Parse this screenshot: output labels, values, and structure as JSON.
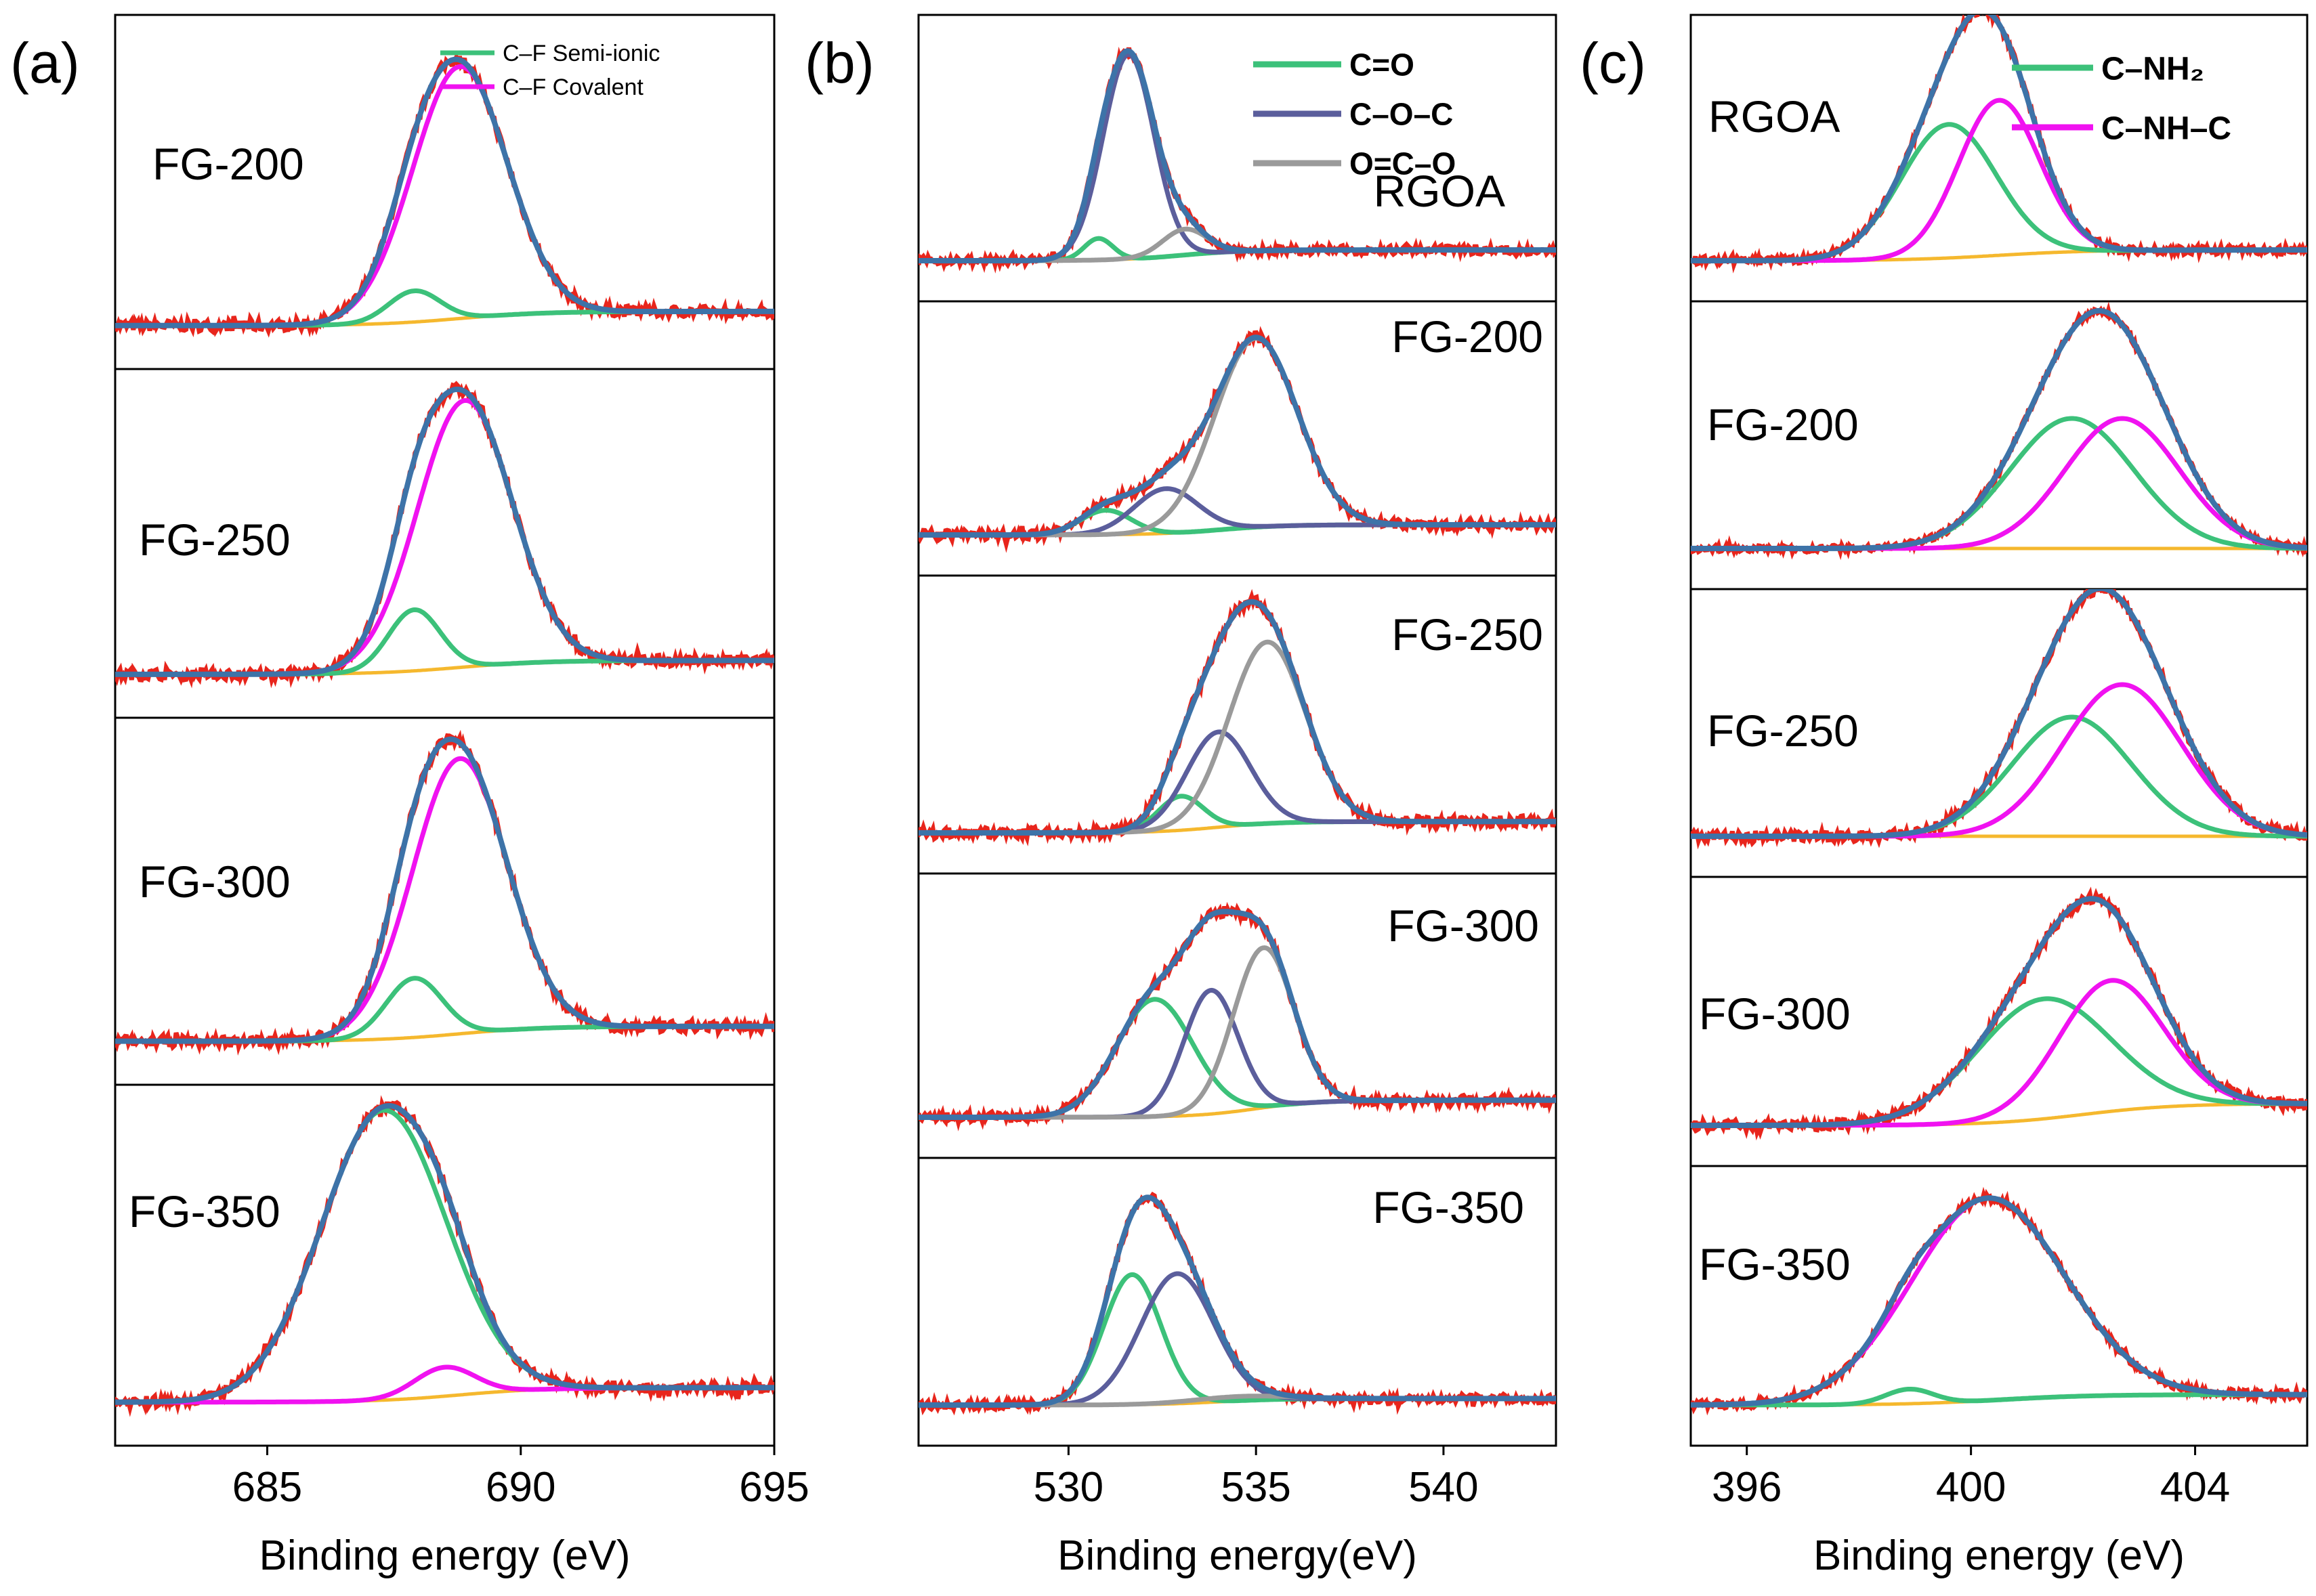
{
  "colors": {
    "raw": "#e8251c",
    "envelope": "#3d73a8",
    "background": "#f5b82e",
    "green": "#3cc17a",
    "magenta": "#f012f0",
    "slate": "#5b5e9c",
    "gray": "#9a9a9a",
    "axis": "#000000"
  },
  "chart_data": [
    {
      "type": "line",
      "panel_label": "(a)",
      "xlabel": "Binding energy (eV)",
      "xlim": [
        682,
        695
      ],
      "x_ticks": [
        685,
        690,
        695
      ],
      "tick_labels": [
        "685",
        "690",
        "695"
      ],
      "legend": [
        {
          "label": "C–F Semi-ionic",
          "color": "green"
        },
        {
          "label": "C–F Covalent",
          "color": "magenta"
        }
      ],
      "legend_placement": "top-right",
      "spectra": [
        {
          "label": "FG-200",
          "peak_height": 1.0,
          "raw_noise": 0.02,
          "background": {
            "left": 0.01,
            "right": 0.06,
            "center": 688.8
          },
          "components": [
            {
              "name": "C–F Semi-ionic",
              "color": "green",
              "center": 687.9,
              "fwhm": 1.2,
              "height": 0.11
            },
            {
              "name": "C–F Covalent",
              "color": "magenta",
              "center": 688.8,
              "fwhm": 2.2,
              "height": 0.89
            }
          ]
        },
        {
          "label": "FG-250",
          "peak_height": 1.0,
          "raw_noise": 0.02,
          "background": {
            "left": 0.01,
            "right": 0.06,
            "center": 688.8
          },
          "components": [
            {
              "name": "C–F Semi-ionic",
              "color": "green",
              "center": 687.9,
              "fwhm": 1.2,
              "height": 0.22
            },
            {
              "name": "C–F Covalent",
              "color": "magenta",
              "center": 688.9,
              "fwhm": 2.2,
              "height": 0.96
            }
          ]
        },
        {
          "label": "FG-300",
          "peak_height": 1.0,
          "raw_noise": 0.02,
          "background": {
            "left": 0.01,
            "right": 0.06,
            "center": 688.8
          },
          "components": [
            {
              "name": "C–F Semi-ionic",
              "color": "green",
              "center": 687.9,
              "fwhm": 1.3,
              "height": 0.2
            },
            {
              "name": "C–F Covalent",
              "color": "magenta",
              "center": 688.8,
              "fwhm": 2.2,
              "height": 0.93
            }
          ]
        },
        {
          "label": "FG-350",
          "peak_height": 1.0,
          "raw_noise": 0.02,
          "background": {
            "left": 0.01,
            "right": 0.06,
            "center": 688.8
          },
          "components": [
            {
              "name": "C–F Semi-ionic",
              "color": "green",
              "center": 687.3,
              "fwhm": 2.9,
              "height": 1.0
            },
            {
              "name": "C–F Covalent",
              "color": "magenta",
              "center": 688.5,
              "fwhm": 1.4,
              "height": 0.1
            }
          ]
        }
      ]
    },
    {
      "type": "line",
      "panel_label": "(b)",
      "xlabel": "Binding energy(eV)",
      "xlim": [
        526,
        543
      ],
      "x_ticks": [
        530,
        535,
        540
      ],
      "tick_labels": [
        "530",
        "535",
        "540"
      ],
      "legend": [
        {
          "label": "C=O",
          "color": "green"
        },
        {
          "label": "C–O–C",
          "color": "slate"
        },
        {
          "label": "O=C–O",
          "color": "gray"
        }
      ],
      "legend_placement": "top-right",
      "spectra": [
        {
          "label": "RGOA",
          "peak_height": 1.0,
          "raw_noise": 0.02,
          "background": {
            "left": 0.0,
            "right": 0.05,
            "center": 533
          },
          "components": [
            {
              "name": "C=O",
              "color": "green",
              "center": 530.8,
              "fwhm": 0.9,
              "height": 0.1
            },
            {
              "name": "C–O–C",
              "color": "slate",
              "center": 531.6,
              "fwhm": 1.6,
              "height": 0.95
            },
            {
              "name": "O=C–O",
              "color": "gray",
              "center": 533.1,
              "fwhm": 1.4,
              "height": 0.12
            }
          ]
        },
        {
          "label": "FG-200",
          "peak_height": 1.0,
          "raw_noise": 0.025,
          "background": {
            "left": 0.0,
            "right": 0.05,
            "center": 534
          },
          "components": [
            {
              "name": "C=O",
              "color": "green",
              "center": 531.0,
              "fwhm": 1.6,
              "height": 0.12
            },
            {
              "name": "C–O–C",
              "color": "slate",
              "center": 532.6,
              "fwhm": 2.0,
              "height": 0.22
            },
            {
              "name": "O=C–O",
              "color": "gray",
              "center": 535.0,
              "fwhm": 2.6,
              "height": 0.93
            }
          ]
        },
        {
          "label": "FG-250",
          "peak_height": 1.0,
          "raw_noise": 0.025,
          "background": {
            "left": 0.0,
            "right": 0.05,
            "center": 534
          },
          "components": [
            {
              "name": "C=O",
              "color": "green",
              "center": 533.0,
              "fwhm": 1.4,
              "height": 0.15
            },
            {
              "name": "C–O–C",
              "color": "slate",
              "center": 534.0,
              "fwhm": 2.0,
              "height": 0.42
            },
            {
              "name": "O=C–O",
              "color": "gray",
              "center": 535.3,
              "fwhm": 2.4,
              "height": 0.8
            }
          ]
        },
        {
          "label": "FG-300",
          "peak_height": 1.0,
          "raw_noise": 0.025,
          "background": {
            "left": 0.0,
            "right": 0.08,
            "center": 535
          },
          "components": [
            {
              "name": "C=O",
              "color": "green",
              "center": 532.3,
              "fwhm": 2.4,
              "height": 0.55
            },
            {
              "name": "C–O–C",
              "color": "slate",
              "center": 533.8,
              "fwhm": 1.7,
              "height": 0.58
            },
            {
              "name": "O=C–O",
              "color": "gray",
              "center": 535.2,
              "fwhm": 1.9,
              "height": 0.75
            }
          ]
        },
        {
          "label": "FG-350",
          "peak_height": 1.0,
          "raw_noise": 0.02,
          "background": {
            "left": 0.0,
            "right": 0.03,
            "center": 534
          },
          "components": [
            {
              "name": "C=O",
              "color": "green",
              "center": 531.7,
              "fwhm": 1.8,
              "height": 0.6
            },
            {
              "name": "C–O–C",
              "color": "slate",
              "center": 532.9,
              "fwhm": 2.3,
              "height": 0.6
            },
            {
              "name": "O=C–O",
              "color": "gray",
              "center": 534.5,
              "fwhm": 3.0,
              "height": 0.02
            }
          ]
        }
      ]
    },
    {
      "type": "line",
      "panel_label": "(c)",
      "xlabel": "Binding energy (eV)",
      "xlim": [
        395,
        406
      ],
      "x_ticks": [
        396,
        400,
        404
      ],
      "tick_labels": [
        "396",
        "400",
        "404"
      ],
      "legend": [
        {
          "label": "C–NH₂",
          "color": "green"
        },
        {
          "label": "C–NH–C",
          "color": "magenta"
        }
      ],
      "legend_placement": "top-right",
      "spectra": [
        {
          "label": "RGOA",
          "peak_height": 1.0,
          "raw_noise": 0.02,
          "background": {
            "left": 0.0,
            "right": 0.05,
            "center": 400.5
          },
          "components": [
            {
              "name": "C–NH₂",
              "color": "green",
              "center": 399.6,
              "fwhm": 2.0,
              "height": 0.62
            },
            {
              "name": "C–NH–C",
              "color": "magenta",
              "center": 400.5,
              "fwhm": 1.7,
              "height": 0.72
            }
          ]
        },
        {
          "label": "FG-200",
          "peak_height": 1.0,
          "raw_noise": 0.015,
          "background": {
            "left": 0.0,
            "right": 0.0,
            "center": 402
          },
          "components": [
            {
              "name": "C–NH₂",
              "color": "green",
              "center": 401.8,
              "fwhm": 2.6,
              "height": 0.6
            },
            {
              "name": "C–NH–C",
              "color": "magenta",
              "center": 402.7,
              "fwhm": 2.4,
              "height": 0.6
            }
          ]
        },
        {
          "label": "FG-250",
          "peak_height": 1.0,
          "raw_noise": 0.025,
          "background": {
            "left": 0.0,
            "right": 0.0,
            "center": 402
          },
          "components": [
            {
              "name": "C–NH₂",
              "color": "green",
              "center": 401.8,
              "fwhm": 2.5,
              "height": 0.55
            },
            {
              "name": "C–NH–C",
              "color": "magenta",
              "center": 402.7,
              "fwhm": 2.5,
              "height": 0.7
            }
          ]
        },
        {
          "label": "FG-300",
          "peak_height": 1.0,
          "raw_noise": 0.025,
          "background": {
            "left": 0.0,
            "right": 0.1,
            "center": 402
          },
          "components": [
            {
              "name": "C–NH₂",
              "color": "green",
              "center": 401.3,
              "fwhm": 2.8,
              "height": 0.55
            },
            {
              "name": "C–NH–C",
              "color": "magenta",
              "center": 402.5,
              "fwhm": 2.2,
              "height": 0.6
            }
          ]
        },
        {
          "label": "FG-350",
          "peak_height": 1.0,
          "raw_noise": 0.02,
          "background": {
            "left": 0.0,
            "right": 0.05,
            "center": 400.5
          },
          "components": [
            {
              "name": "C–NH₂",
              "color": "green",
              "center": 398.9,
              "fwhm": 1.0,
              "height": 0.07
            },
            {
              "name": "C–NH–C",
              "color": "magenta",
              "center": 400.3,
              "fwhm": 3.2,
              "height": 0.97
            }
          ]
        }
      ]
    }
  ]
}
